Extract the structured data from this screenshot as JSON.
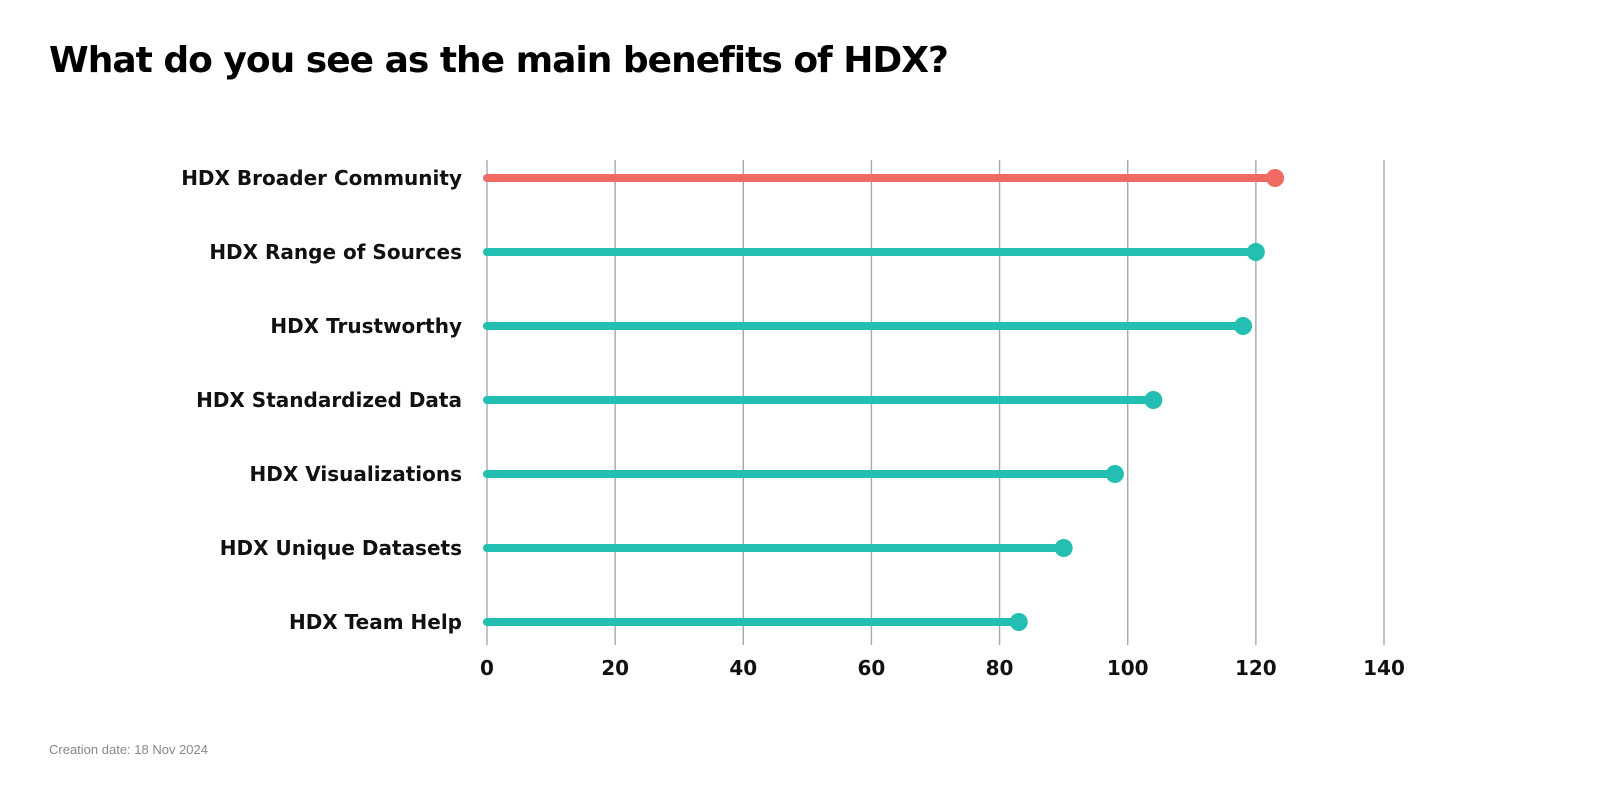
{
  "title": "What do you see as the main benefits of HDX?",
  "footnote": "Creation date: 18 Nov 2024",
  "colors": {
    "highlight": "#f06a63",
    "default": "#22bfb2",
    "grid": "#a8a8a8"
  },
  "chart_data": {
    "type": "bar",
    "style": "lollipop",
    "orientation": "horizontal",
    "categories": [
      "HDX Broader Community",
      "HDX Range of Sources",
      "HDX Trustworthy",
      "HDX Standardized Data",
      "HDX Visualizations",
      "HDX Unique Datasets",
      "HDX Team Help"
    ],
    "values": [
      123,
      120,
      118,
      104,
      98,
      90,
      83
    ],
    "highlight_index": 0,
    "xlim": [
      0,
      140
    ],
    "xticks": [
      0,
      20,
      40,
      60,
      80,
      100,
      120,
      140
    ],
    "grid": true,
    "legend": "none"
  }
}
